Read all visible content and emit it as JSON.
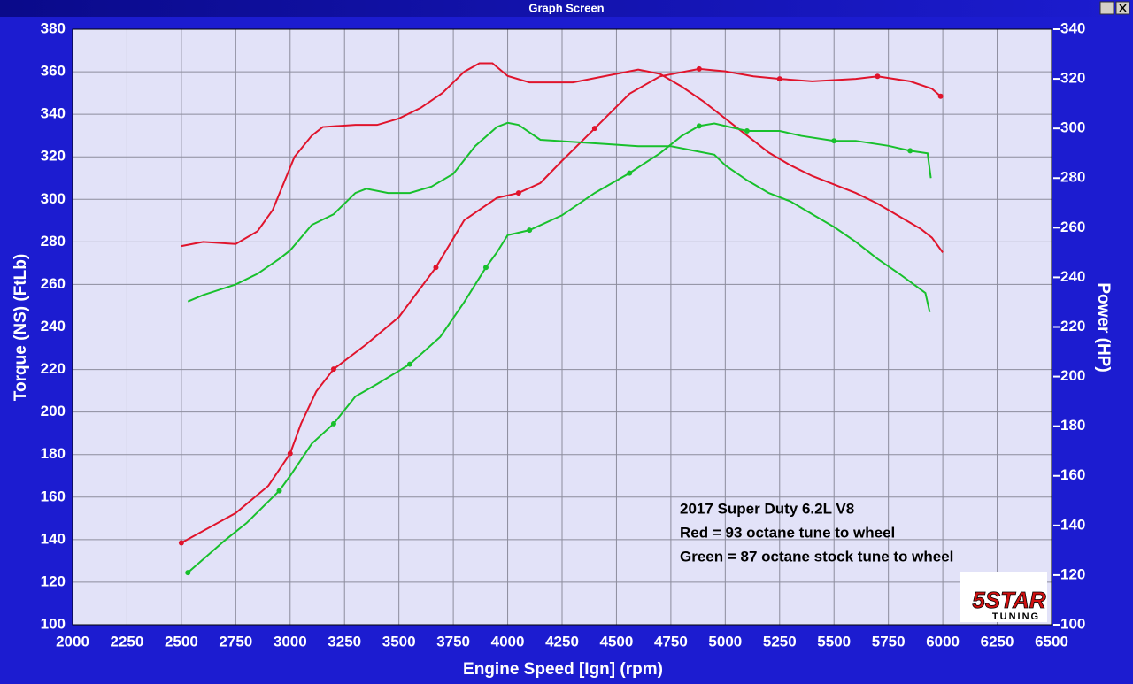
{
  "window_title": "Graph Screen",
  "chart_data": {
    "type": "line",
    "xlabel": "Engine Speed [Ign] (rpm)",
    "ylabel": "Torque (NS) (FtLb)",
    "y2label": "Power (HP)",
    "xlim": [
      2000,
      6500
    ],
    "xticks": [
      2000,
      2250,
      2500,
      2750,
      3000,
      3250,
      3500,
      3750,
      4000,
      4250,
      4500,
      4750,
      5000,
      5250,
      5500,
      5750,
      6000,
      6250,
      6500
    ],
    "ylim": [
      100,
      380
    ],
    "yticks": [
      100,
      120,
      140,
      160,
      180,
      200,
      220,
      240,
      260,
      280,
      300,
      320,
      340,
      360,
      380
    ],
    "y2lim": [
      100,
      340
    ],
    "y2ticks": [
      100,
      120,
      140,
      160,
      180,
      200,
      220,
      240,
      260,
      280,
      300,
      320,
      340
    ],
    "grid": true,
    "annotations": [
      "2017 Super Duty 6.2L V8",
      "Red = 93 octane tune to wheel",
      "Green = 87 octane stock tune to wheel"
    ],
    "logo": [
      "5STAR",
      "TUNING"
    ],
    "series": [
      {
        "color": "#e0142c",
        "axis": "y",
        "markers": false,
        "x": [
          2500,
          2600,
          2750,
          2850,
          2920,
          2980,
          3020,
          3100,
          3150,
          3300,
          3400,
          3500,
          3600,
          3700,
          3800,
          3870,
          3930,
          4000,
          4100,
          4300,
          4450,
          4600,
          4700,
          4800,
          4900,
          5000,
          5100,
          5200,
          5300,
          5400,
          5500,
          5600,
          5700,
          5800,
          5900,
          5950,
          6000
        ],
        "values": [
          278,
          280,
          279,
          285,
          295,
          310,
          320,
          330,
          334,
          335,
          335,
          338,
          343,
          350,
          360,
          364,
          364,
          358,
          355,
          355,
          358,
          361,
          359,
          353,
          346,
          338,
          330,
          322,
          316,
          311,
          307,
          303,
          298,
          292,
          286,
          282,
          275
        ]
      },
      {
        "color": "#e0142c",
        "axis": "y2",
        "markers": true,
        "x": [
          2500,
          2750,
          2900,
          3000,
          3050,
          3120,
          3200,
          3350,
          3500,
          3670,
          3800,
          3950,
          4050,
          4150,
          4250,
          4400,
          4560,
          4700,
          4880,
          5000,
          5130,
          5250,
          5400,
          5600,
          5700,
          5850,
          5950,
          5990
        ],
        "values": [
          133,
          145,
          156,
          169,
          181,
          194,
          203,
          213,
          224,
          244,
          263,
          272,
          274,
          278,
          287,
          300,
          314,
          321,
          324,
          323,
          321,
          320,
          319,
          320,
          321,
          319,
          316,
          313
        ]
      },
      {
        "color": "#18c02c",
        "axis": "y",
        "markers": false,
        "x": [
          2530,
          2600,
          2750,
          2850,
          2950,
          3000,
          3100,
          3200,
          3300,
          3350,
          3450,
          3550,
          3650,
          3750,
          3850,
          3950,
          4000,
          4050,
          4150,
          4300,
          4450,
          4600,
          4750,
          4850,
          4950,
          5000,
          5100,
          5200,
          5300,
          5400,
          5500,
          5600,
          5700,
          5800,
          5880,
          5920,
          5940
        ],
        "values": [
          252,
          255,
          260,
          265,
          272,
          276,
          288,
          293,
          303,
          305,
          303,
          303,
          306,
          312,
          325,
          334,
          336,
          335,
          328,
          327,
          326,
          325,
          325,
          323,
          321,
          316,
          309,
          303,
          299,
          293,
          287,
          280,
          272,
          265,
          259,
          256,
          247
        ]
      },
      {
        "color": "#18c02c",
        "axis": "y2",
        "markers": true,
        "x": [
          2530,
          2700,
          2800,
          2950,
          3000,
          3100,
          3200,
          3300,
          3400,
          3550,
          3690,
          3800,
          3900,
          3950,
          4000,
          4100,
          4250,
          4400,
          4560,
          4700,
          4800,
          4880,
          4950,
          5000,
          5100,
          5250,
          5350,
          5500,
          5600,
          5750,
          5850,
          5930,
          5945
        ],
        "values": [
          121,
          134,
          141,
          154,
          160,
          173,
          181,
          192,
          197,
          205,
          216,
          230,
          244,
          250,
          257,
          259,
          265,
          274,
          282,
          290,
          297,
          301,
          302,
          301,
          299,
          299,
          297,
          295,
          295,
          293,
          291,
          290,
          280
        ]
      }
    ]
  }
}
